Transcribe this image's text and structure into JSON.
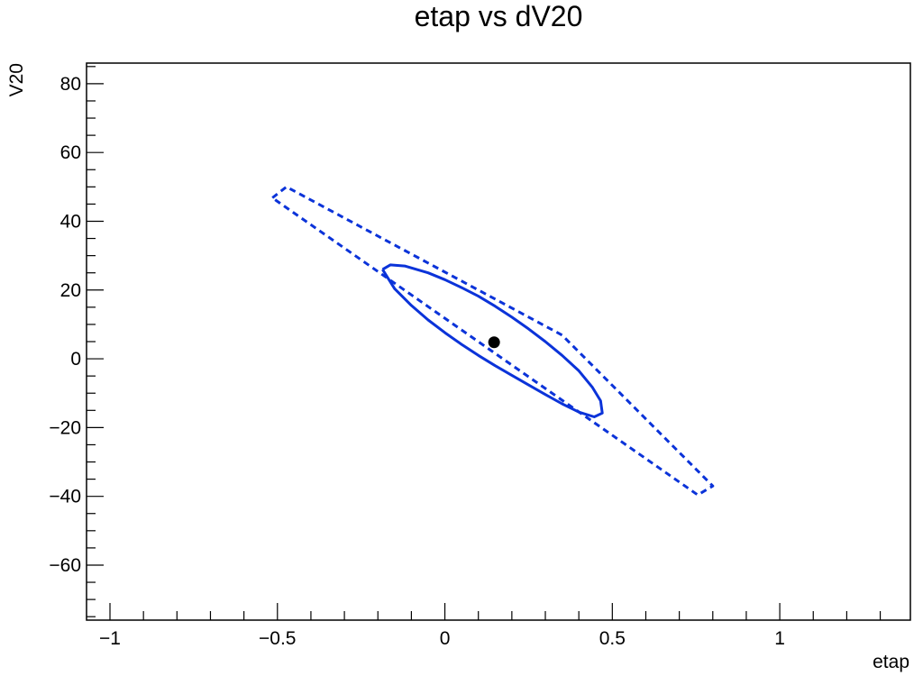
{
  "chart_data": {
    "type": "scatter",
    "title": "etap vs dV20",
    "xlabel": "etap",
    "ylabel": "V20",
    "xlim": [
      -1.07,
      1.39
    ],
    "ylim": [
      -76,
      86
    ],
    "x_ticks": [
      {
        "value": -1,
        "label": "−1"
      },
      {
        "value": -0.5,
        "label": "−0.5"
      },
      {
        "value": 0,
        "label": "0"
      },
      {
        "value": 0.5,
        "label": "0.5"
      },
      {
        "value": 1,
        "label": "1"
      }
    ],
    "y_ticks": [
      {
        "value": -60,
        "label": "−60"
      },
      {
        "value": -40,
        "label": "−40"
      },
      {
        "value": -20,
        "label": "−20"
      },
      {
        "value": 0,
        "label": "0"
      },
      {
        "value": 20,
        "label": "20"
      },
      {
        "value": 40,
        "label": "40"
      },
      {
        "value": 60,
        "label": "60"
      },
      {
        "value": 80,
        "label": "80"
      }
    ],
    "grid": false,
    "series": [
      {
        "kind": "point",
        "color": "#000000",
        "points": [
          [
            0.147,
            4.8
          ]
        ]
      },
      {
        "kind": "contour",
        "style": "solid",
        "color": "#0b33d9",
        "points": [
          [
            -0.186,
            26.0
          ],
          [
            -0.163,
            27.3
          ],
          [
            -0.12,
            27.0
          ],
          [
            -0.05,
            25.0
          ],
          [
            0.0,
            23.0
          ],
          [
            0.05,
            20.7
          ],
          [
            0.1,
            18.2
          ],
          [
            0.15,
            15.3
          ],
          [
            0.2,
            12.1
          ],
          [
            0.25,
            8.7
          ],
          [
            0.3,
            5.0
          ],
          [
            0.35,
            1.0
          ],
          [
            0.4,
            -3.5
          ],
          [
            0.44,
            -8.2
          ],
          [
            0.465,
            -12.2
          ],
          [
            0.47,
            -15.8
          ],
          [
            0.446,
            -16.9
          ],
          [
            0.4,
            -15.5
          ],
          [
            0.35,
            -13.1
          ],
          [
            0.3,
            -10.4
          ],
          [
            0.25,
            -7.6
          ],
          [
            0.2,
            -4.8
          ],
          [
            0.15,
            -2.0
          ],
          [
            0.1,
            1.0
          ],
          [
            0.05,
            4.2
          ],
          [
            0.0,
            7.6
          ],
          [
            -0.05,
            11.3
          ],
          [
            -0.1,
            15.5
          ],
          [
            -0.15,
            20.4
          ],
          [
            -0.186,
            26.0
          ]
        ]
      },
      {
        "kind": "contour",
        "style": "dashed",
        "color": "#0b33d9",
        "points": [
          [
            -0.515,
            46.8
          ],
          [
            -0.473,
            50.0
          ],
          [
            0.35,
            6.9
          ],
          [
            0.8,
            -37.0
          ],
          [
            0.755,
            -39.6
          ],
          [
            -0.515,
            46.8
          ]
        ]
      }
    ]
  }
}
